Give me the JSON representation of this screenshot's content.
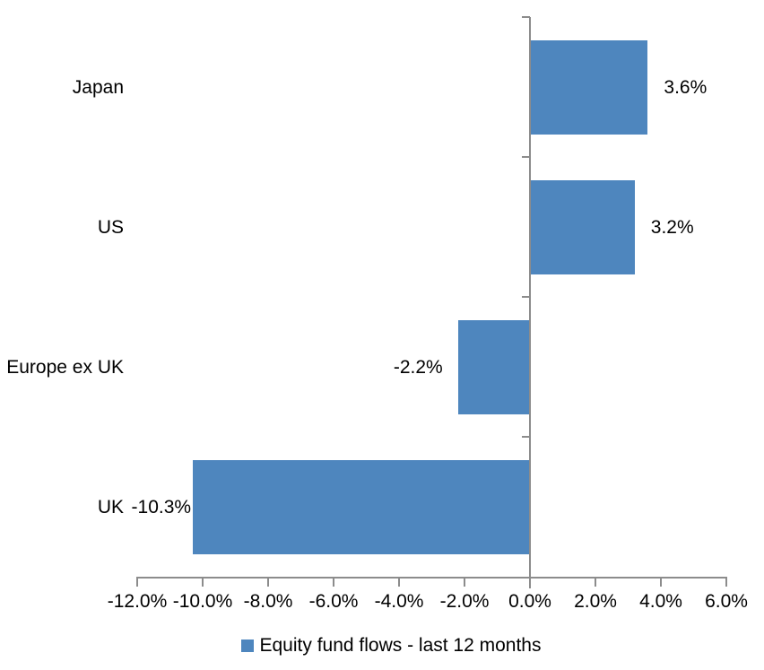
{
  "chart_data": {
    "type": "bar",
    "orientation": "horizontal",
    "title": "",
    "categories": [
      "Japan",
      "US",
      "Europe ex UK",
      "UK"
    ],
    "series": [
      {
        "name": "Equity fund flows - last 12 months",
        "values": [
          3.6,
          3.2,
          -2.2,
          -10.3
        ],
        "data_labels": [
          "3.6%",
          "3.2%",
          "-2.2%",
          "-10.3%"
        ]
      }
    ],
    "xlabel": "",
    "ylabel": "",
    "xlim": [
      -12,
      6
    ],
    "x_tick_step": 2,
    "x_tick_labels": [
      "-12.0%",
      "-10.0%",
      "-8.0%",
      "-6.0%",
      "-4.0%",
      "-2.0%",
      "0.0%",
      "2.0%",
      "4.0%",
      "6.0%"
    ],
    "grid": false,
    "legend": {
      "position": "bottom",
      "entries": [
        "Equity fund flows - last 12 months"
      ]
    },
    "colors": {
      "bar": "#4E86BE",
      "axis": "#8C8C8C",
      "text": "#000000",
      "background": "#FFFFFF"
    }
  }
}
